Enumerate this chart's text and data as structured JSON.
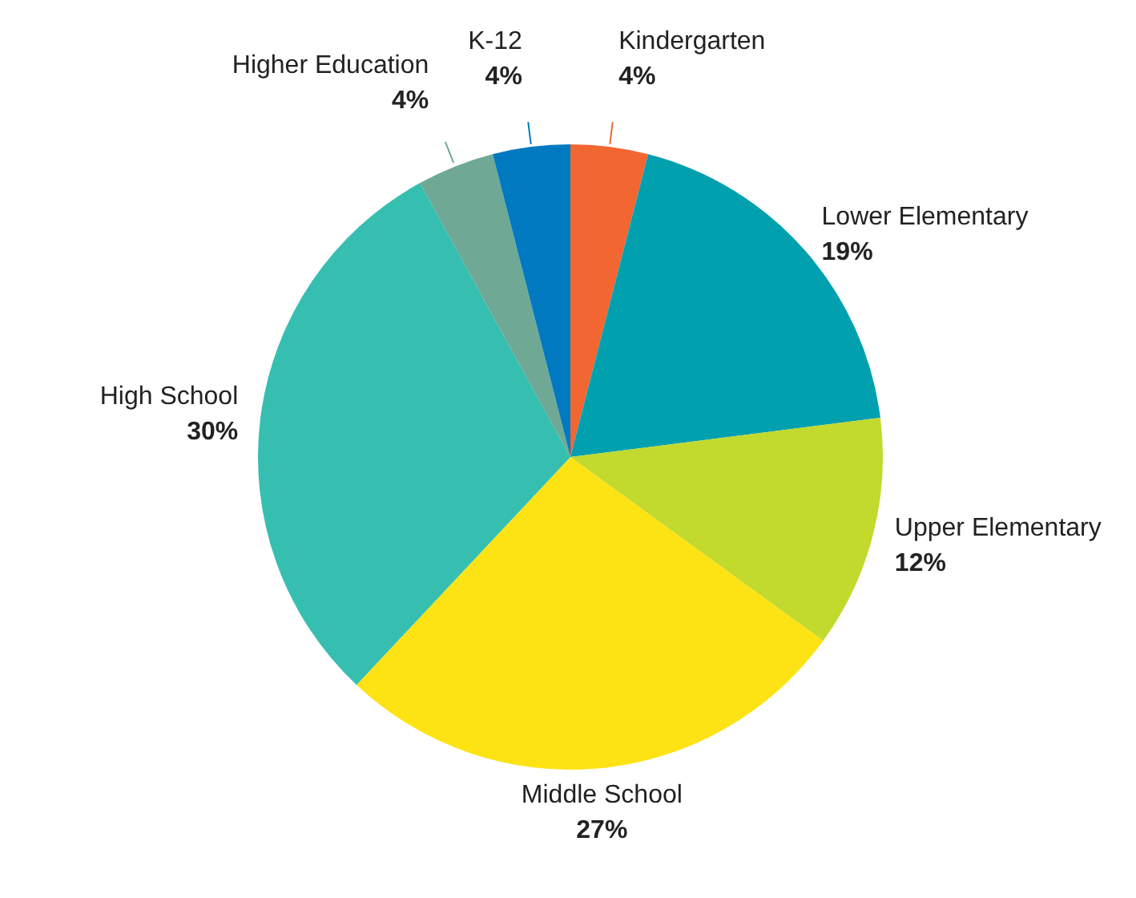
{
  "chart_data": {
    "type": "pie",
    "categories": [
      "Kindergarten",
      "Lower Elementary",
      "Upper Elementary",
      "Middle School",
      "High School",
      "Higher Education",
      "K-12"
    ],
    "values": [
      4,
      19,
      12,
      27,
      30,
      4,
      4
    ],
    "value_labels": [
      "4%",
      "19%",
      "12%",
      "27%",
      "30%",
      "4%",
      "4%"
    ],
    "colors": [
      "#f26631",
      "#00a0af",
      "#c2d92e",
      "#fde314",
      "#36bfb1",
      "#6fa894",
      "#0079c1"
    ],
    "legend": false
  }
}
